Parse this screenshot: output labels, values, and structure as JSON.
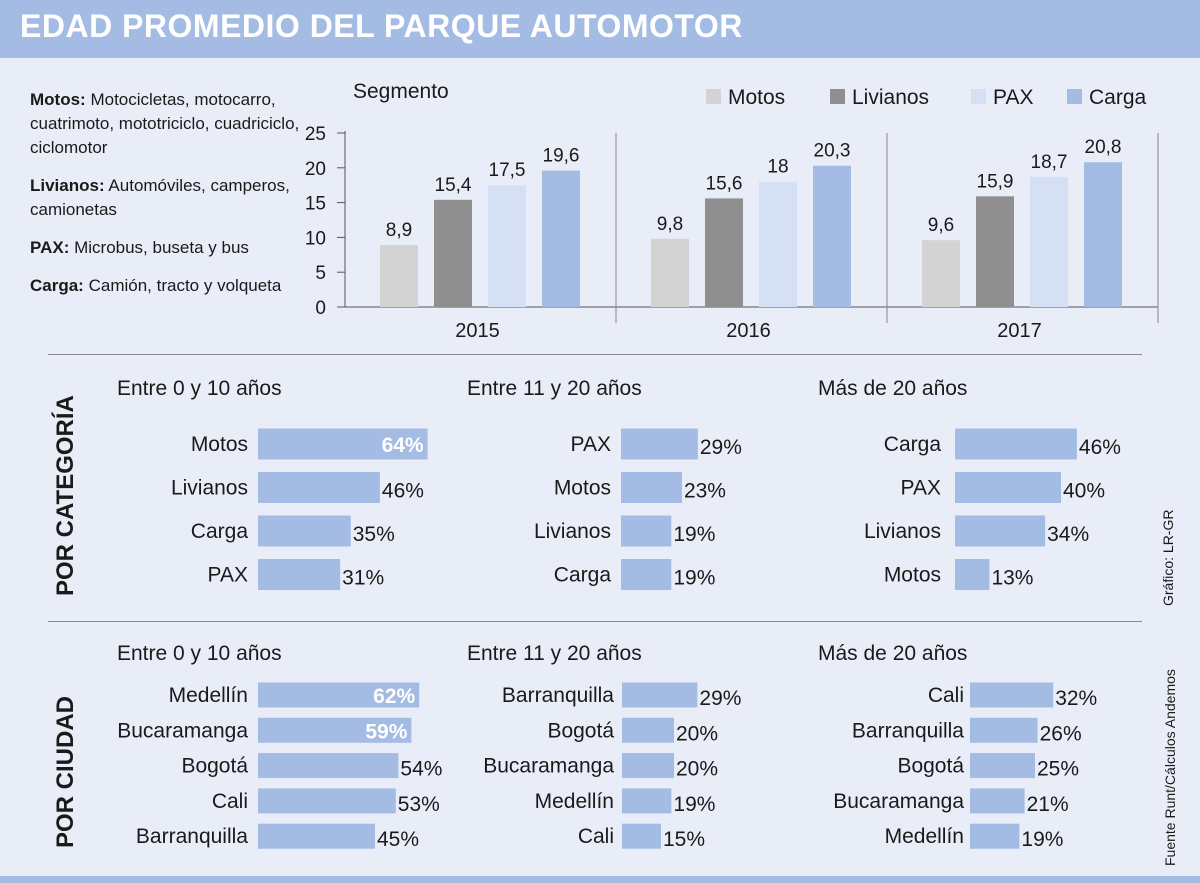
{
  "title": "EDAD PROMEDIO DEL PARQUE AUTOMOTOR",
  "definitions": [
    {
      "term": "Motos:",
      "text": "Motocicletas, motocarro, cuatrimoto, mototriciclo, cuadriciclo, ciclomotor"
    },
    {
      "term": "Livianos:",
      "text": "Automóviles, camperos, camionetas"
    },
    {
      "term": "PAX:",
      "text": "Microbus, buseta y bus"
    },
    {
      "term": "Carga:",
      "text": "Camión, tracto y volqueta"
    }
  ],
  "colors": {
    "header": "#a4bce3",
    "background": "#e9edf7",
    "motos": "#d3d3d3",
    "livianos": "#8f8f8f",
    "pax": "#d6e0f4",
    "carga": "#a4bce3",
    "hbar": "#a4bce3"
  },
  "chart_data": [
    {
      "type": "bar",
      "title": "Segmento",
      "categories": [
        "2015",
        "2016",
        "2017"
      ],
      "series": [
        {
          "name": "Motos",
          "values": [
            8.9,
            9.8,
            9.6
          ],
          "labels": [
            "8,9",
            "9,8",
            "9,6"
          ]
        },
        {
          "name": "Livianos",
          "values": [
            15.4,
            15.6,
            15.9
          ],
          "labels": [
            "15,4",
            "15,6",
            "15,9"
          ]
        },
        {
          "name": "PAX",
          "values": [
            17.5,
            18,
            18.7
          ],
          "labels": [
            "17,5",
            "18",
            "18,7"
          ]
        },
        {
          "name": "Carga",
          "values": [
            19.6,
            20.3,
            20.8
          ],
          "labels": [
            "19,6",
            "20,3",
            "20,8"
          ]
        }
      ],
      "yticks": [
        0,
        5,
        10,
        15,
        20,
        25
      ],
      "ylim": [
        0,
        25
      ],
      "legend": "top-right"
    },
    {
      "type": "bar",
      "orientation": "horizontal",
      "section": "POR CATEGORÍA",
      "panels": [
        {
          "title": "Entre 0 y 10 años",
          "items": [
            {
              "label": "Motos",
              "value": 64
            },
            {
              "label": "Livianos",
              "value": 46
            },
            {
              "label": "Carga",
              "value": 35
            },
            {
              "label": "PAX",
              "value": 31
            }
          ]
        },
        {
          "title": "Entre 11 y 20 años",
          "items": [
            {
              "label": "PAX",
              "value": 29
            },
            {
              "label": "Motos",
              "value": 23
            },
            {
              "label": "Livianos",
              "value": 19
            },
            {
              "label": "Carga",
              "value": 19
            }
          ]
        },
        {
          "title": "Más de 20 años",
          "items": [
            {
              "label": "Carga",
              "value": 46
            },
            {
              "label": "PAX",
              "value": 40
            },
            {
              "label": "Livianos",
              "value": 34
            },
            {
              "label": "Motos",
              "value": 13
            }
          ]
        }
      ]
    },
    {
      "type": "bar",
      "orientation": "horizontal",
      "section": "POR CIUDAD",
      "panels": [
        {
          "title": "Entre 0 y 10 años",
          "items": [
            {
              "label": "Medellín",
              "value": 62
            },
            {
              "label": "Bucaramanga",
              "value": 59
            },
            {
              "label": "Bogotá",
              "value": 54
            },
            {
              "label": "Cali",
              "value": 53
            },
            {
              "label": "Barranquilla",
              "value": 45
            }
          ]
        },
        {
          "title": "Entre 11 y 20 años",
          "items": [
            {
              "label": "Barranquilla",
              "value": 29
            },
            {
              "label": "Bogotá",
              "value": 20
            },
            {
              "label": "Bucaramanga",
              "value": 20
            },
            {
              "label": "Medellín",
              "value": 19
            },
            {
              "label": "Cali",
              "value": 15
            }
          ]
        },
        {
          "title": "Más de 20 años",
          "items": [
            {
              "label": "Cali",
              "value": 32
            },
            {
              "label": "Barranquilla",
              "value": 26
            },
            {
              "label": "Bogotá",
              "value": 25
            },
            {
              "label": "Bucaramanga",
              "value": 21
            },
            {
              "label": "Medellín",
              "value": 19
            }
          ]
        }
      ]
    }
  ],
  "credit": "Gráfico: LR-GR",
  "source": "Fuente Runt/Cálculos Andemos"
}
